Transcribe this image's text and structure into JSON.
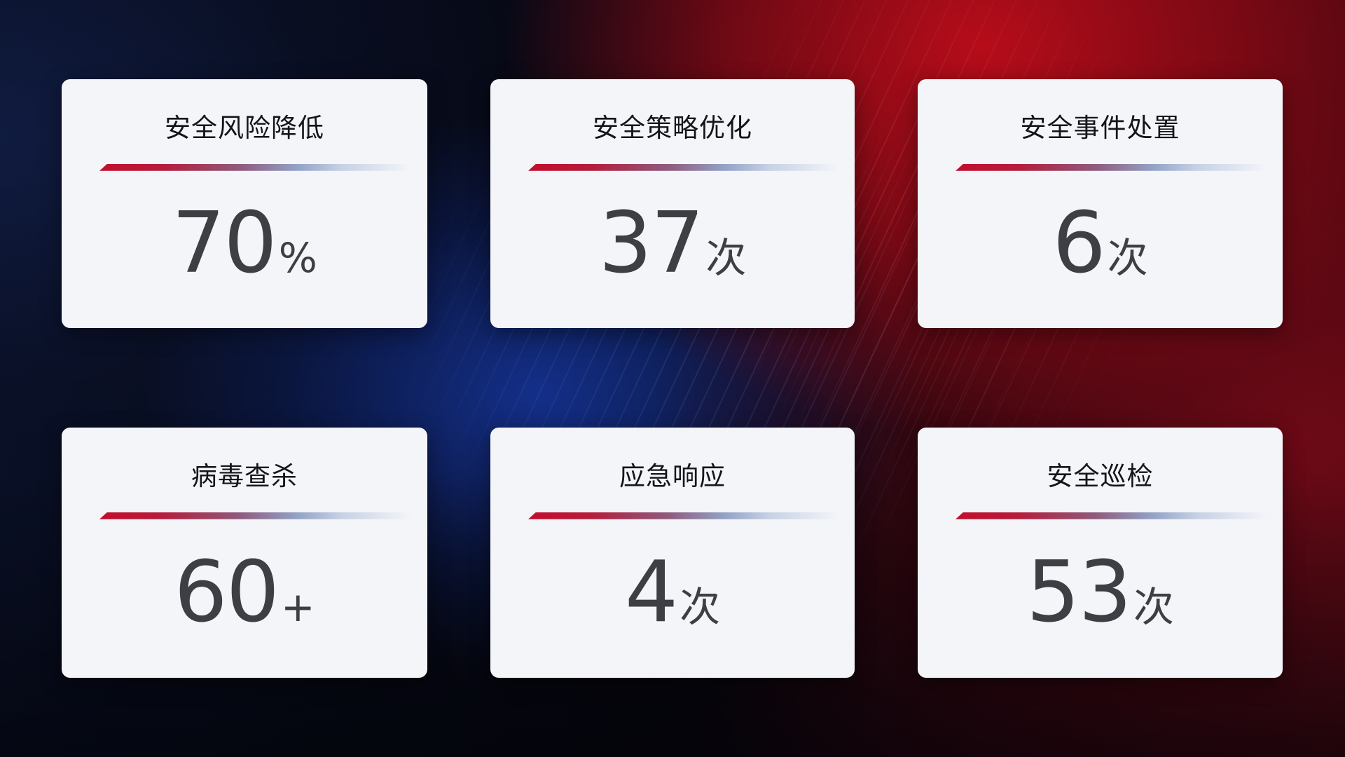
{
  "colors": {
    "card_bg": "#f4f5f9",
    "title_text": "#141519",
    "value_text": "#3e3f44",
    "divider_red": "#c30d2d",
    "divider_blue": "#c6d1e4",
    "bg_navy": "#0a1129",
    "bg_blue_glow": "#16369e",
    "bg_red_glow": "#be0d1a"
  },
  "cards": [
    {
      "title": "安全风险降低",
      "value": "70",
      "unit": "%"
    },
    {
      "title": "安全策略优化",
      "value": "37",
      "unit": "次"
    },
    {
      "title": "安全事件处置",
      "value": "6",
      "unit": "次"
    },
    {
      "title": "病毒查杀",
      "value": "60",
      "unit": "+"
    },
    {
      "title": "应急响应",
      "value": "4",
      "unit": "次"
    },
    {
      "title": "安全巡检",
      "value": "53",
      "unit": "次"
    }
  ]
}
